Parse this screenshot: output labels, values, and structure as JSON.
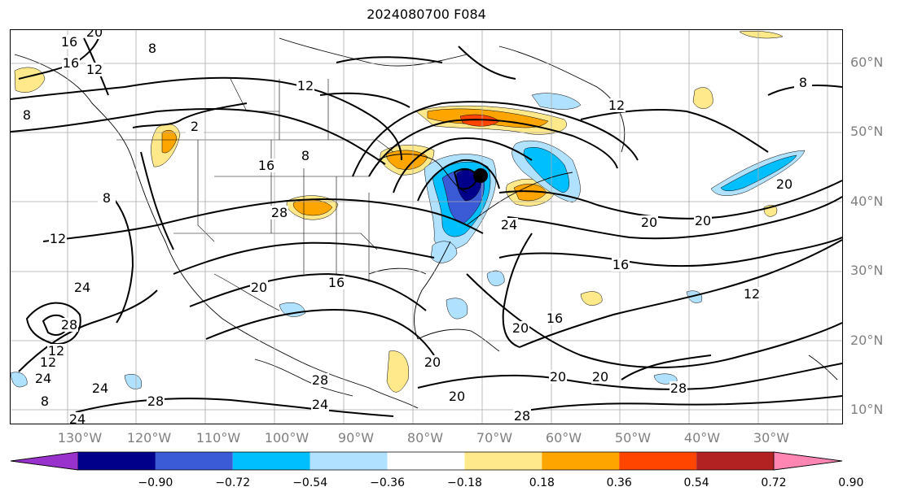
{
  "title": "2024080700 F084",
  "latitude_labels": [
    "60°N",
    "50°N",
    "40°N",
    "30°N",
    "20°N",
    "10°N"
  ],
  "longitude_labels": [
    "130°W",
    "120°W",
    "110°W",
    "100°W",
    "90°W",
    "80°W",
    "70°W",
    "60°W",
    "50°W",
    "40°W",
    "30°W"
  ],
  "contour_labels": [
    "20",
    "16",
    "8",
    "16",
    "12",
    "12",
    "2",
    "16",
    "8",
    "28",
    "8",
    "12",
    "8",
    "24",
    "28",
    "24",
    "12",
    "24",
    "8",
    "24",
    "28",
    "20",
    "16",
    "24",
    "20",
    "16",
    "16",
    "12",
    "20",
    "20",
    "20",
    "20",
    "28",
    "28",
    "24",
    "28",
    "12",
    "20",
    "8",
    "12",
    "20",
    "20"
  ],
  "colorbar": {
    "tick_labels": [
      "−0.90",
      "−0.72",
      "−0.54",
      "−0.36",
      "−0.18",
      "0.18",
      "0.36",
      "0.54",
      "0.72",
      "0.90"
    ],
    "colors": [
      "#9932cc",
      "#00008b",
      "#3b5bd6",
      "#00bfff",
      "#b0e2ff",
      "#ffffff",
      "#ffe98a",
      "#ffa500",
      "#ff4500",
      "#b22222",
      "#ff85b3"
    ]
  },
  "shading_colors": {
    "strong_negative": "#00008b",
    "mid_negative": "#3b5bd6",
    "negative": "#00bfff",
    "weak_negative": "#b0e2ff",
    "weak_positive": "#ffe98a",
    "positive": "#ffa500",
    "strong_positive": "#ff4500"
  }
}
